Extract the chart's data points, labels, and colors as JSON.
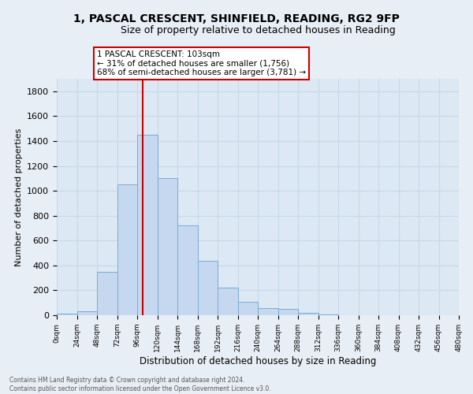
{
  "title": "1, PASCAL CRESCENT, SHINFIELD, READING, RG2 9FP",
  "subtitle": "Size of property relative to detached houses in Reading",
  "xlabel": "Distribution of detached houses by size in Reading",
  "ylabel": "Number of detached properties",
  "bar_color": "#c5d8f0",
  "bar_edge_color": "#7aabd4",
  "bin_edges": [
    0,
    24,
    48,
    72,
    96,
    120,
    144,
    168,
    192,
    216,
    240,
    264,
    288,
    312,
    336,
    360,
    384,
    408,
    432,
    456,
    480
  ],
  "bar_heights": [
    15,
    30,
    350,
    1050,
    1450,
    1100,
    720,
    435,
    220,
    105,
    55,
    50,
    18,
    5,
    2,
    1,
    0,
    0,
    0,
    0
  ],
  "tick_labels": [
    "0sqm",
    "24sqm",
    "48sqm",
    "72sqm",
    "96sqm",
    "120sqm",
    "144sqm",
    "168sqm",
    "192sqm",
    "216sqm",
    "240sqm",
    "264sqm",
    "288sqm",
    "312sqm",
    "336sqm",
    "360sqm",
    "384sqm",
    "408sqm",
    "432sqm",
    "456sqm",
    "480sqm"
  ],
  "ylim": [
    0,
    1900
  ],
  "yticks": [
    0,
    200,
    400,
    600,
    800,
    1000,
    1200,
    1400,
    1600,
    1800
  ],
  "vline_x": 103,
  "vline_color": "#cc0000",
  "annotation_title": "1 PASCAL CRESCENT: 103sqm",
  "annotation_line1": "← 31% of detached houses are smaller (1,756)",
  "annotation_line2": "68% of semi-detached houses are larger (3,781) →",
  "footer_line1": "Contains HM Land Registry data © Crown copyright and database right 2024.",
  "footer_line2": "Contains public sector information licensed under the Open Government Licence v3.0.",
  "background_color": "#e8eef5",
  "plot_bg_color": "#dce8f4",
  "grid_color": "#c8d8e8"
}
